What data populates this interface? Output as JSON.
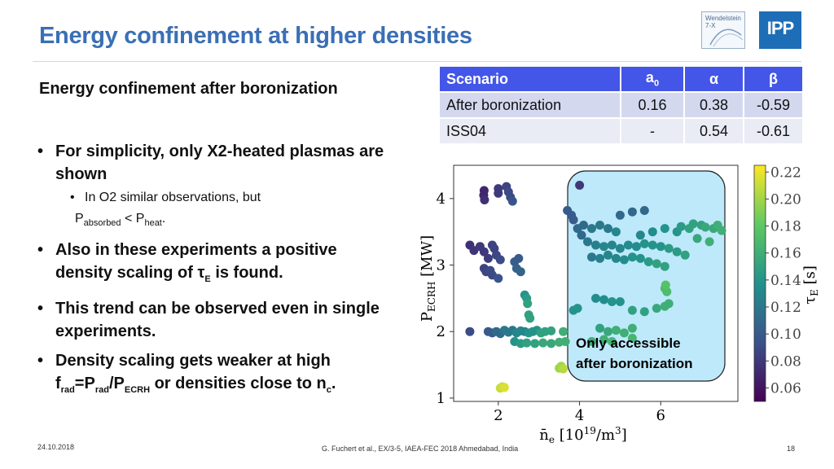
{
  "slide": {
    "title": "Energy confinement at higher densities",
    "subtitle": "Energy confinement after boronization",
    "logo_w7x_line1": "Wendelstein",
    "logo_w7x_line2": "7-X",
    "logo_ipp": "IPP",
    "footer_date": "24.10.2018",
    "footer_citation": "G. Fuchert et al., EX/3-5, IAEA-FEC 2018 Ahmedabad, India",
    "footer_page": "18"
  },
  "bullets": {
    "b1": "For simplicity, only X2-heated plasmas are shown",
    "b1_sub_a": "In O2 similar observations, but",
    "b1_sub_b_p1": "P",
    "b1_sub_b_s1": "absorbed",
    "b1_sub_b_lt": " < P",
    "b1_sub_b_s2": "heat",
    "b1_sub_b_end": ".",
    "b2_text": "Also in these experiments a positive density scaling of τ",
    "b2_sub": "E",
    "b2_end": " is found.",
    "b3": "This trend can be observed even in single experiments.",
    "b4_a": "Density scaling gets weaker at high f",
    "b4_s1": "rad",
    "b4_b": "=P",
    "b4_s2": "rad",
    "b4_c": "/P",
    "b4_s3": "ECRH",
    "b4_d": " or densities close to n",
    "b4_s4": "c",
    "b4_e": "."
  },
  "table": {
    "headers": [
      "Scenario",
      "a",
      "α",
      "β"
    ],
    "header_a_sub": "0",
    "rows": [
      [
        "After boronization",
        "0.16",
        "0.38",
        "-0.59"
      ],
      [
        "ISS04",
        "-",
        "0.54",
        "-0.61"
      ]
    ]
  },
  "chart_data": {
    "type": "scatter",
    "xlabel": "n̄e [10^19/m^3]",
    "ylabel": "P_ECRH [MW]",
    "colorbar_label": "τE [s]",
    "xlim": [
      0.9,
      7.9
    ],
    "ylim": [
      0.95,
      4.5
    ],
    "xticks": [
      "2",
      "4",
      "6"
    ],
    "yticks": [
      "1",
      "2",
      "3",
      "4"
    ],
    "colorbar_ticks": [
      "0.22",
      "0.20",
      "0.18",
      "0.16",
      "0.14",
      "0.12",
      "0.10",
      "0.08",
      "0.06"
    ],
    "clim": [
      0.05,
      0.225
    ],
    "colormap": "viridis",
    "annotation": "Only accessible after boronization",
    "annotation_line1": "Only accessible",
    "annotation_line2": "after boronization",
    "annotation_color": "#bde9fb",
    "points": [
      {
        "x": 1.65,
        "y": 4.12,
        "c": 0.07
      },
      {
        "x": 1.64,
        "y": 4.05,
        "c": 0.07
      },
      {
        "x": 1.66,
        "y": 3.98,
        "c": 0.075
      },
      {
        "x": 2.0,
        "y": 4.15,
        "c": 0.08
      },
      {
        "x": 2.0,
        "y": 4.08,
        "c": 0.08
      },
      {
        "x": 2.2,
        "y": 4.18,
        "c": 0.085
      },
      {
        "x": 2.25,
        "y": 4.1,
        "c": 0.09
      },
      {
        "x": 2.3,
        "y": 4.02,
        "c": 0.09
      },
      {
        "x": 2.35,
        "y": 3.96,
        "c": 0.095
      },
      {
        "x": 1.3,
        "y": 3.3,
        "c": 0.075
      },
      {
        "x": 1.4,
        "y": 3.22,
        "c": 0.078
      },
      {
        "x": 1.55,
        "y": 3.28,
        "c": 0.08
      },
      {
        "x": 1.65,
        "y": 3.2,
        "c": 0.08
      },
      {
        "x": 1.75,
        "y": 3.1,
        "c": 0.082
      },
      {
        "x": 1.85,
        "y": 3.3,
        "c": 0.085
      },
      {
        "x": 1.9,
        "y": 3.25,
        "c": 0.085
      },
      {
        "x": 1.95,
        "y": 3.15,
        "c": 0.088
      },
      {
        "x": 2.05,
        "y": 3.08,
        "c": 0.09
      },
      {
        "x": 1.65,
        "y": 2.95,
        "c": 0.085
      },
      {
        "x": 1.7,
        "y": 2.9,
        "c": 0.087
      },
      {
        "x": 1.8,
        "y": 2.92,
        "c": 0.09
      },
      {
        "x": 1.85,
        "y": 2.85,
        "c": 0.09
      },
      {
        "x": 2.0,
        "y": 2.8,
        "c": 0.095
      },
      {
        "x": 2.4,
        "y": 3.05,
        "c": 0.1
      },
      {
        "x": 2.45,
        "y": 2.95,
        "c": 0.105
      },
      {
        "x": 2.5,
        "y": 3.1,
        "c": 0.1
      },
      {
        "x": 2.55,
        "y": 2.9,
        "c": 0.105
      },
      {
        "x": 2.65,
        "y": 2.55,
        "c": 0.14
      },
      {
        "x": 2.7,
        "y": 2.5,
        "c": 0.145
      },
      {
        "x": 2.72,
        "y": 2.42,
        "c": 0.15
      },
      {
        "x": 2.75,
        "y": 2.25,
        "c": 0.15
      },
      {
        "x": 2.78,
        "y": 2.2,
        "c": 0.15
      },
      {
        "x": 1.3,
        "y": 2.0,
        "c": 0.09
      },
      {
        "x": 1.75,
        "y": 2.0,
        "c": 0.1
      },
      {
        "x": 1.85,
        "y": 1.98,
        "c": 0.1
      },
      {
        "x": 1.95,
        "y": 2.0,
        "c": 0.11
      },
      {
        "x": 2.05,
        "y": 1.97,
        "c": 0.11
      },
      {
        "x": 2.15,
        "y": 2.02,
        "c": 0.12
      },
      {
        "x": 2.25,
        "y": 1.99,
        "c": 0.12
      },
      {
        "x": 2.35,
        "y": 2.02,
        "c": 0.12
      },
      {
        "x": 2.45,
        "y": 1.98,
        "c": 0.13
      },
      {
        "x": 2.55,
        "y": 2.01,
        "c": 0.13
      },
      {
        "x": 2.65,
        "y": 2.0,
        "c": 0.13
      },
      {
        "x": 2.75,
        "y": 1.98,
        "c": 0.14
      },
      {
        "x": 2.85,
        "y": 2.0,
        "c": 0.14
      },
      {
        "x": 2.95,
        "y": 2.02,
        "c": 0.14
      },
      {
        "x": 3.05,
        "y": 1.98,
        "c": 0.15
      },
      {
        "x": 3.15,
        "y": 2.0,
        "c": 0.15
      },
      {
        "x": 3.3,
        "y": 2.01,
        "c": 0.15
      },
      {
        "x": 2.4,
        "y": 1.85,
        "c": 0.14
      },
      {
        "x": 2.55,
        "y": 1.82,
        "c": 0.145
      },
      {
        "x": 2.7,
        "y": 1.83,
        "c": 0.15
      },
      {
        "x": 2.9,
        "y": 1.82,
        "c": 0.15
      },
      {
        "x": 3.1,
        "y": 1.83,
        "c": 0.155
      },
      {
        "x": 3.3,
        "y": 1.82,
        "c": 0.155
      },
      {
        "x": 3.5,
        "y": 1.84,
        "c": 0.16
      },
      {
        "x": 3.6,
        "y": 2.0,
        "c": 0.16
      },
      {
        "x": 3.65,
        "y": 1.85,
        "c": 0.16
      },
      {
        "x": 3.5,
        "y": 1.45,
        "c": 0.2
      },
      {
        "x": 3.55,
        "y": 1.48,
        "c": 0.2
      },
      {
        "x": 3.6,
        "y": 1.44,
        "c": 0.205
      },
      {
        "x": 2.05,
        "y": 1.15,
        "c": 0.21
      },
      {
        "x": 2.1,
        "y": 1.17,
        "c": 0.21
      },
      {
        "x": 2.15,
        "y": 1.16,
        "c": 0.215
      },
      {
        "x": 4.0,
        "y": 4.2,
        "c": 0.08
      },
      {
        "x": 3.7,
        "y": 3.82,
        "c": 0.1
      },
      {
        "x": 3.8,
        "y": 3.75,
        "c": 0.1
      },
      {
        "x": 3.85,
        "y": 3.68,
        "c": 0.1
      },
      {
        "x": 3.95,
        "y": 3.55,
        "c": 0.11
      },
      {
        "x": 4.05,
        "y": 3.45,
        "c": 0.11
      },
      {
        "x": 4.1,
        "y": 3.6,
        "c": 0.11
      },
      {
        "x": 4.3,
        "y": 3.55,
        "c": 0.12
      },
      {
        "x": 4.5,
        "y": 3.6,
        "c": 0.12
      },
      {
        "x": 4.7,
        "y": 3.55,
        "c": 0.12
      },
      {
        "x": 4.9,
        "y": 3.5,
        "c": 0.13
      },
      {
        "x": 4.2,
        "y": 3.35,
        "c": 0.12
      },
      {
        "x": 4.4,
        "y": 3.3,
        "c": 0.125
      },
      {
        "x": 4.6,
        "y": 3.28,
        "c": 0.13
      },
      {
        "x": 4.8,
        "y": 3.3,
        "c": 0.13
      },
      {
        "x": 5.0,
        "y": 3.25,
        "c": 0.13
      },
      {
        "x": 5.2,
        "y": 3.3,
        "c": 0.135
      },
      {
        "x": 5.4,
        "y": 3.28,
        "c": 0.135
      },
      {
        "x": 5.6,
        "y": 3.32,
        "c": 0.14
      },
      {
        "x": 5.8,
        "y": 3.3,
        "c": 0.14
      },
      {
        "x": 6.0,
        "y": 3.28,
        "c": 0.14
      },
      {
        "x": 6.2,
        "y": 3.25,
        "c": 0.145
      },
      {
        "x": 6.4,
        "y": 3.2,
        "c": 0.145
      },
      {
        "x": 6.6,
        "y": 3.15,
        "c": 0.15
      },
      {
        "x": 4.3,
        "y": 3.12,
        "c": 0.12
      },
      {
        "x": 4.5,
        "y": 3.1,
        "c": 0.125
      },
      {
        "x": 4.7,
        "y": 3.15,
        "c": 0.13
      },
      {
        "x": 4.9,
        "y": 3.1,
        "c": 0.13
      },
      {
        "x": 5.1,
        "y": 3.08,
        "c": 0.135
      },
      {
        "x": 5.3,
        "y": 3.12,
        "c": 0.14
      },
      {
        "x": 5.5,
        "y": 3.1,
        "c": 0.14
      },
      {
        "x": 5.7,
        "y": 3.05,
        "c": 0.145
      },
      {
        "x": 5.9,
        "y": 3.02,
        "c": 0.15
      },
      {
        "x": 6.1,
        "y": 2.98,
        "c": 0.15
      },
      {
        "x": 5.5,
        "y": 3.45,
        "c": 0.13
      },
      {
        "x": 5.8,
        "y": 3.5,
        "c": 0.135
      },
      {
        "x": 6.1,
        "y": 3.55,
        "c": 0.14
      },
      {
        "x": 6.4,
        "y": 3.5,
        "c": 0.14
      },
      {
        "x": 6.7,
        "y": 3.55,
        "c": 0.15
      },
      {
        "x": 7.0,
        "y": 3.6,
        "c": 0.15
      },
      {
        "x": 7.3,
        "y": 3.55,
        "c": 0.155
      },
      {
        "x": 5.0,
        "y": 3.75,
        "c": 0.11
      },
      {
        "x": 5.3,
        "y": 3.8,
        "c": 0.11
      },
      {
        "x": 5.6,
        "y": 3.82,
        "c": 0.11
      },
      {
        "x": 6.5,
        "y": 3.58,
        "c": 0.145
      },
      {
        "x": 6.8,
        "y": 3.62,
        "c": 0.15
      },
      {
        "x": 7.1,
        "y": 3.57,
        "c": 0.155
      },
      {
        "x": 7.4,
        "y": 3.6,
        "c": 0.16
      },
      {
        "x": 7.5,
        "y": 3.52,
        "c": 0.16
      },
      {
        "x": 6.9,
        "y": 3.4,
        "c": 0.155
      },
      {
        "x": 7.2,
        "y": 3.35,
        "c": 0.16
      },
      {
        "x": 4.4,
        "y": 2.5,
        "c": 0.135
      },
      {
        "x": 4.6,
        "y": 2.48,
        "c": 0.135
      },
      {
        "x": 4.8,
        "y": 2.45,
        "c": 0.14
      },
      {
        "x": 5.0,
        "y": 2.45,
        "c": 0.14
      },
      {
        "x": 3.85,
        "y": 2.32,
        "c": 0.14
      },
      {
        "x": 3.95,
        "y": 2.35,
        "c": 0.14
      },
      {
        "x": 5.3,
        "y": 2.32,
        "c": 0.15
      },
      {
        "x": 5.6,
        "y": 2.3,
        "c": 0.15
      },
      {
        "x": 5.9,
        "y": 2.35,
        "c": 0.155
      },
      {
        "x": 6.1,
        "y": 2.38,
        "c": 0.16
      },
      {
        "x": 6.2,
        "y": 2.42,
        "c": 0.16
      },
      {
        "x": 6.1,
        "y": 2.65,
        "c": 0.17
      },
      {
        "x": 6.15,
        "y": 2.6,
        "c": 0.17
      },
      {
        "x": 6.12,
        "y": 2.7,
        "c": 0.175
      },
      {
        "x": 4.5,
        "y": 2.05,
        "c": 0.15
      },
      {
        "x": 4.7,
        "y": 2.0,
        "c": 0.155
      },
      {
        "x": 4.9,
        "y": 2.02,
        "c": 0.16
      },
      {
        "x": 5.1,
        "y": 1.98,
        "c": 0.16
      },
      {
        "x": 5.3,
        "y": 2.05,
        "c": 0.16
      },
      {
        "x": 4.6,
        "y": 1.88,
        "c": 0.16
      },
      {
        "x": 4.8,
        "y": 1.85,
        "c": 0.165
      },
      {
        "x": 4.3,
        "y": 1.85,
        "c": 0.16
      },
      {
        "x": 5.3,
        "y": 1.9,
        "c": 0.165
      }
    ]
  }
}
